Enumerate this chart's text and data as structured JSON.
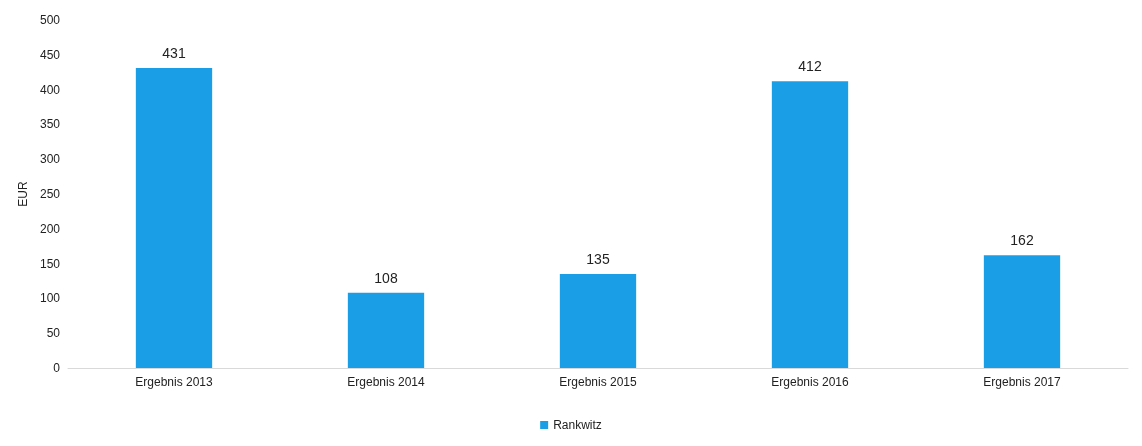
{
  "chart_data": {
    "type": "bar",
    "ylabel": "EUR",
    "categories": [
      "Ergebnis 2013",
      "Ergebnis 2014",
      "Ergebnis 2015",
      "Ergebnis 2016",
      "Ergebnis 2017"
    ],
    "series": [
      {
        "name": "Rankwitz",
        "color": "#1a9fe6",
        "values": [
          431,
          108,
          135,
          412,
          162
        ]
      }
    ],
    "ylim": [
      0,
      500
    ],
    "yticks": [
      0,
      50,
      100,
      150,
      200,
      250,
      300,
      350,
      400,
      450,
      500
    ],
    "data_labels": true,
    "legend": "bottom",
    "grid": false
  }
}
